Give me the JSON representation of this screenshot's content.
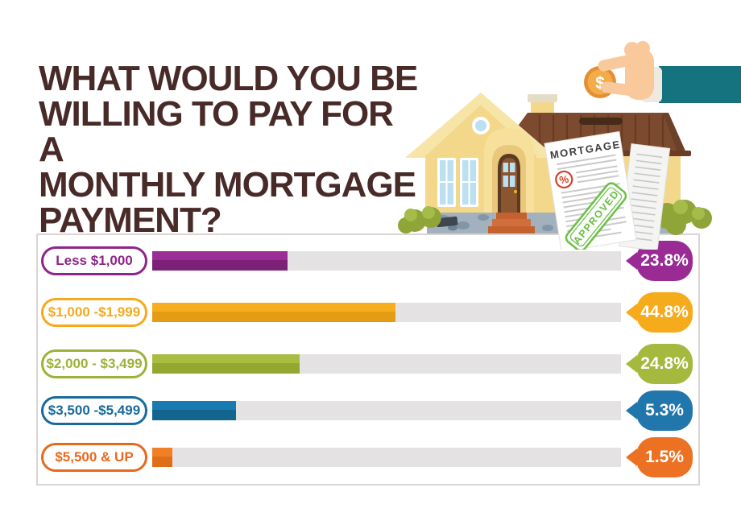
{
  "header": {
    "title_lines": [
      "WHAT WOULD YOU BE",
      "WILLING TO PAY FOR A",
      "MONTHLY MORTGAGE",
      "PAYMENT?"
    ]
  },
  "illustration": {
    "coin_text": "$",
    "doc_title": "MORTGAGE",
    "doc_percent": "%",
    "stamp_text": "APPROVED",
    "colors": {
      "sleeve": "#15737F",
      "skin": "#F9C89B",
      "coin": "#F4AC49",
      "coin_edge": "#E28F35",
      "roof": "#7C4A2E",
      "wall": "#F3D88C",
      "stamp_green": "#6CBF45",
      "badge_red": "#D6402C",
      "bush_green": "#8FA538",
      "stone_gray": "#A2B1BD"
    }
  },
  "chart_data": {
    "type": "bar",
    "orientation": "horizontal",
    "title": "WHAT WOULD YOU BE WILLING TO PAY FOR A MONTHLY MORTGAGE PAYMENT?",
    "unit": "%",
    "categories": [
      "Less $1,000",
      "$1,000 -$1,999",
      "$2,000 - $3,499",
      "$3,500 -$5,499",
      "$5,500 & UP"
    ],
    "values": [
      23.8,
      44.8,
      24.8,
      5.3,
      1.5
    ],
    "value_labels": [
      "23.8%",
      "44.8%",
      "24.8%",
      "5.3%",
      "1.5%"
    ],
    "bar_display_pct": [
      28.9,
      51.9,
      31.4,
      17.9,
      4.3
    ],
    "xlim": [
      0,
      100
    ],
    "grid": false,
    "legend_position": "none",
    "track_color": "#E4E2E2",
    "rows": [
      {
        "accent": "#8E2589",
        "bar_top": "#9C2D97",
        "bar_bottom": "#7C2078",
        "bubble": "#9A2B94"
      },
      {
        "accent": "#F5A91D",
        "bar_top": "#F7AD1E",
        "bar_bottom": "#E39C13",
        "bubble": "#F6AB1C"
      },
      {
        "accent": "#9DB239",
        "bar_top": "#A9BD43",
        "bar_bottom": "#94A831",
        "bubble": "#A4B93E"
      },
      {
        "accent": "#186A9D",
        "bar_top": "#1A7AB2",
        "bar_bottom": "#13648E",
        "bubble": "#2176AC"
      },
      {
        "accent": "#E8681C",
        "bar_top": "#F08026",
        "bar_bottom": "#E06E18",
        "bubble": "#EC7123"
      }
    ]
  },
  "style": {
    "title_color": "#482B29",
    "panel_border": "#DAD5D3",
    "background": "#FFFFFF"
  }
}
